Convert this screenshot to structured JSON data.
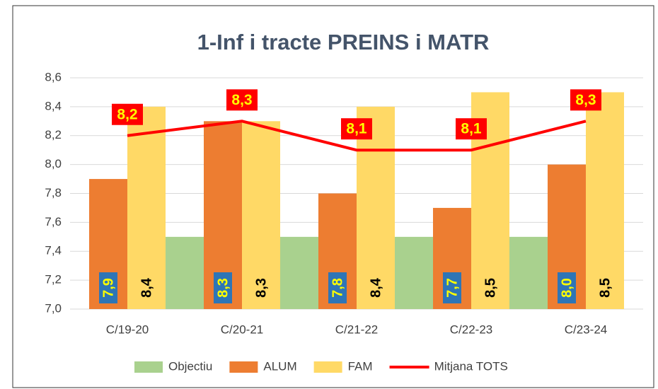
{
  "chart_data": {
    "type": "combo",
    "title": "1-Inf i tracte PREINS i MATR",
    "categories": [
      "C/19-20",
      "C/20-21",
      "C/21-22",
      "C/22-23",
      "C/23-24"
    ],
    "series": [
      {
        "name": "Objectiu",
        "type": "area",
        "color": "#a9d18e",
        "values": [
          7.5,
          7.5,
          7.5,
          7.5,
          7.5
        ]
      },
      {
        "name": "ALUM",
        "type": "bar",
        "color": "#ed7d31",
        "values": [
          7.9,
          8.3,
          7.8,
          7.7,
          8.0
        ],
        "value_labels": [
          "7,9",
          "8,3",
          "7,8",
          "7,7",
          "8,0"
        ]
      },
      {
        "name": "FAM",
        "type": "bar",
        "color": "#ffd966",
        "values": [
          8.4,
          8.3,
          8.4,
          8.5,
          8.5
        ],
        "value_labels": [
          "8,4",
          "8,3",
          "8,4",
          "8,5",
          "8,5"
        ]
      },
      {
        "name": "Mitjana TOTS",
        "type": "line",
        "color": "#ff0000",
        "values": [
          8.2,
          8.3,
          8.1,
          8.1,
          8.3
        ],
        "value_labels": [
          "8,2",
          "8,3",
          "8,1",
          "8,1",
          "8,3"
        ]
      }
    ],
    "ylim": [
      7.0,
      8.6
    ],
    "yticks": [
      {
        "value": 7.0,
        "label": "7,0"
      },
      {
        "value": 7.2,
        "label": "7,2"
      },
      {
        "value": 7.4,
        "label": "7,4"
      },
      {
        "value": 7.6,
        "label": "7,6"
      },
      {
        "value": 7.8,
        "label": "7,8"
      },
      {
        "value": 8.0,
        "label": "8,0"
      },
      {
        "value": 8.2,
        "label": "8,2"
      },
      {
        "value": 8.4,
        "label": "8,4"
      },
      {
        "value": 8.6,
        "label": "8,6"
      }
    ],
    "grid": true,
    "legend": "bottom"
  }
}
